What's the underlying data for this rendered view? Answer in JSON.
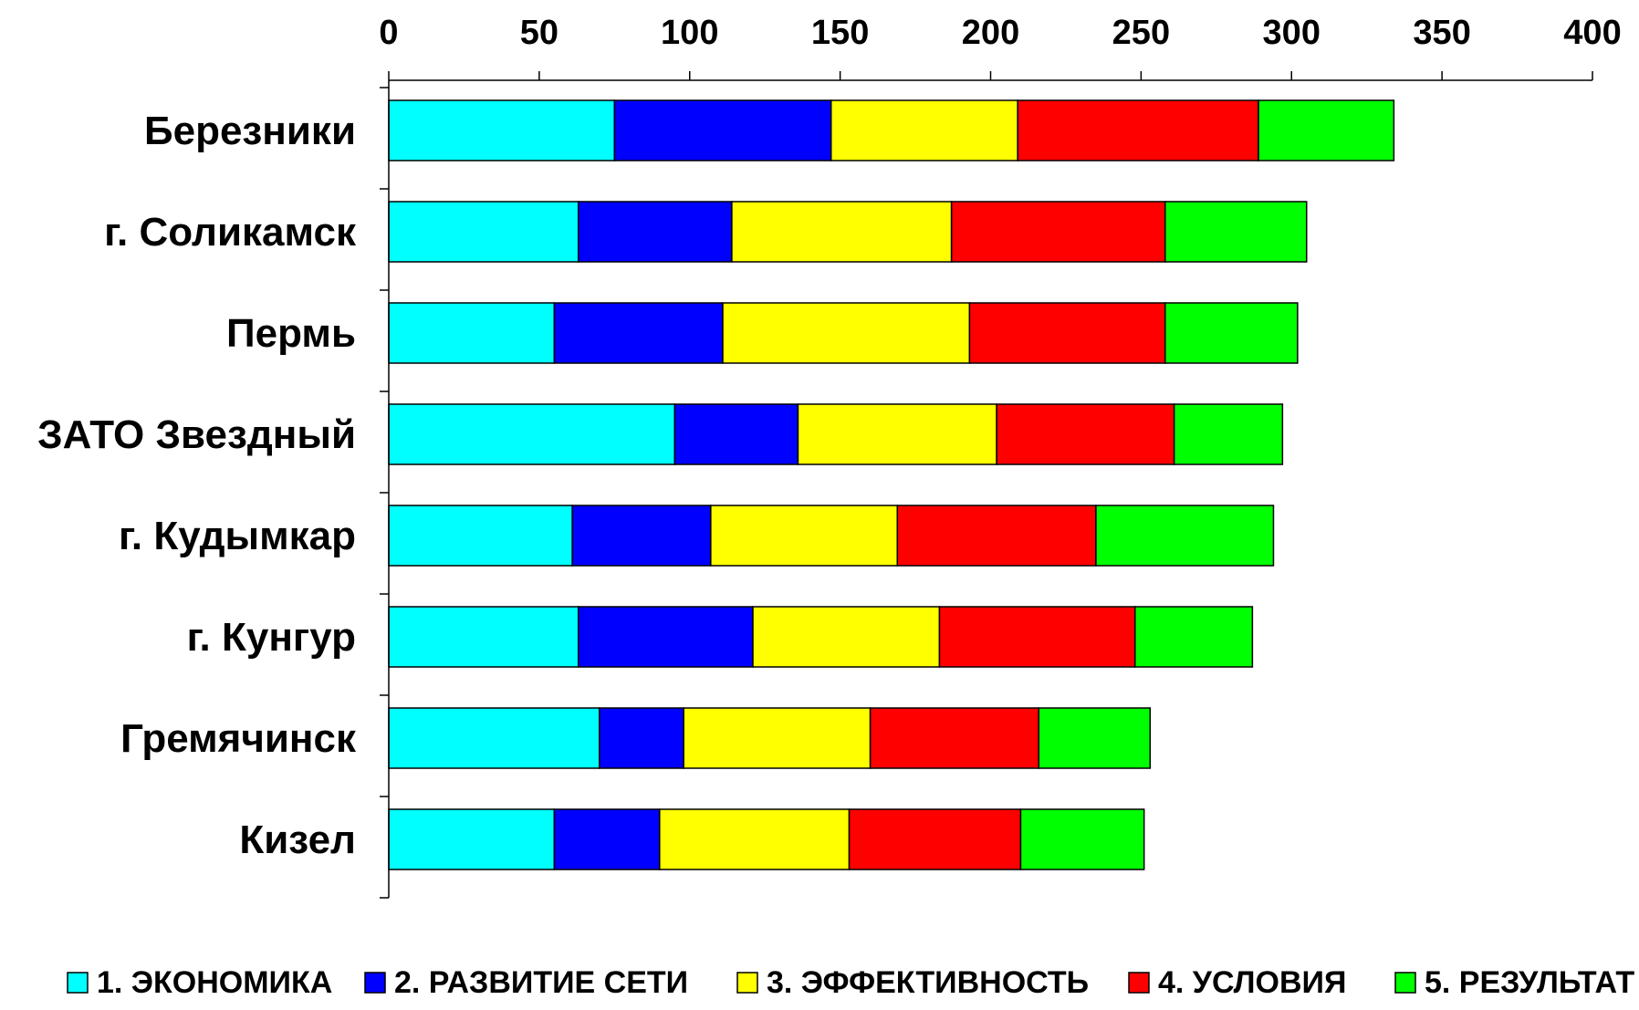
{
  "chart_data": {
    "type": "bar",
    "orientation": "horizontal",
    "stacked": true,
    "categories": [
      "Березники",
      "г. Соликамск",
      "Пермь",
      "ЗАТО Звездный",
      "г. Кудымкар",
      "г. Кунгур",
      "Гремячинск",
      "Кизел"
    ],
    "series": [
      {
        "name": "1. ЭКОНОМИКА",
        "color": "#00FFFF",
        "values": [
          75,
          63,
          55,
          95,
          61,
          63,
          70,
          55
        ]
      },
      {
        "name": "2. РАЗВИТИЕ СЕТИ",
        "color": "#0000FF",
        "values": [
          72,
          51,
          56,
          41,
          46,
          58,
          28,
          35
        ]
      },
      {
        "name": "3. ЭФФЕКТИВНОСТЬ",
        "color": "#FFFF00",
        "values": [
          62,
          73,
          82,
          66,
          62,
          62,
          62,
          63
        ]
      },
      {
        "name": "4. УСЛОВИЯ",
        "color": "#FF0000",
        "values": [
          80,
          71,
          65,
          59,
          66,
          65,
          56,
          57
        ]
      },
      {
        "name": "5. РЕЗУЛЬТАТ",
        "color": "#00FF00",
        "values": [
          45,
          47,
          44,
          36,
          59,
          39,
          37,
          41
        ]
      }
    ],
    "xlim": [
      0,
      400
    ],
    "xticks": [
      0,
      50,
      100,
      150,
      200,
      250,
      300,
      350,
      400
    ],
    "x_axis_position": "top",
    "grid": false,
    "legend_position": "bottom"
  }
}
